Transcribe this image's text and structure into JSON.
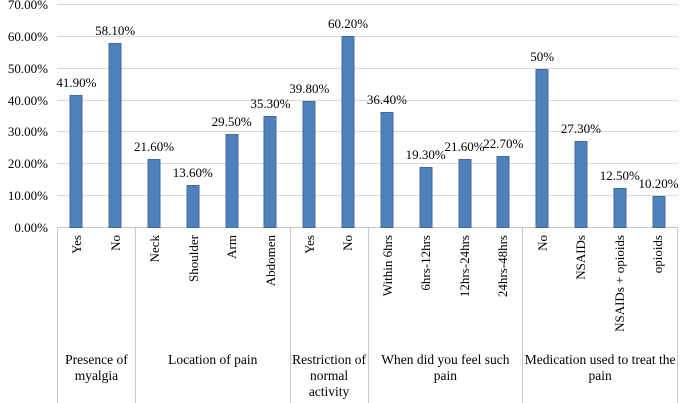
{
  "chart_data": {
    "type": "bar",
    "title": "",
    "xlabel": "",
    "ylabel": "",
    "ylim": [
      0,
      70
    ],
    "grid": true,
    "legend": false,
    "yticks": [
      {
        "label": "0.00%",
        "value": 0
      },
      {
        "label": "10.00%",
        "value": 10
      },
      {
        "label": "20.00%",
        "value": 20
      },
      {
        "label": "30.00%",
        "value": 30
      },
      {
        "label": "40.00%",
        "value": 40
      },
      {
        "label": "50.00%",
        "value": 50
      },
      {
        "label": "60.00%",
        "value": 60
      },
      {
        "label": "70.00%",
        "value": 70
      }
    ],
    "groups": [
      {
        "label": "Presence of myalgia",
        "categories": [
          "Yes",
          "No"
        ],
        "values": [
          41.9,
          58.1
        ],
        "value_labels": [
          "41.90%",
          "58.10%"
        ]
      },
      {
        "label": "Location of pain",
        "categories": [
          "Neck",
          "Shoulder",
          "Arm",
          "Abdomen"
        ],
        "values": [
          21.6,
          13.6,
          29.5,
          35.3
        ],
        "value_labels": [
          "21.60%",
          "13.60%",
          "29.50%",
          "35.30%"
        ]
      },
      {
        "label": "Restriction of normal activity",
        "categories": [
          "Yes",
          "No"
        ],
        "values": [
          39.8,
          60.2
        ],
        "value_labels": [
          "39.80%",
          "60.20%"
        ]
      },
      {
        "label": "When did you feel such pain",
        "categories": [
          "Within 6hrs",
          "6hrs-12hrs",
          "12hrs-24hrs",
          "24hrs-48hrs"
        ],
        "values": [
          36.4,
          19.3,
          21.6,
          22.7
        ],
        "value_labels": [
          "36.40%",
          "19.30%",
          "21.60%",
          "22.70%"
        ]
      },
      {
        "label": "Medication used to treat the pain",
        "categories": [
          "No",
          "NSAIDs",
          "NSAIDs + opioids",
          "opioids"
        ],
        "values": [
          50,
          27.3,
          12.5,
          10.2
        ],
        "value_labels": [
          "50%",
          "27.30%",
          "12.50%",
          "10.20%"
        ]
      }
    ]
  },
  "colors": {
    "bar": "#4F81BD",
    "bar_edge": "#41699D",
    "gridline": "#D9D9D9",
    "axis_line": "#C6C6C6",
    "divider": "#C9C9C9",
    "text": "#000000",
    "background": "#FFFFFF"
  }
}
